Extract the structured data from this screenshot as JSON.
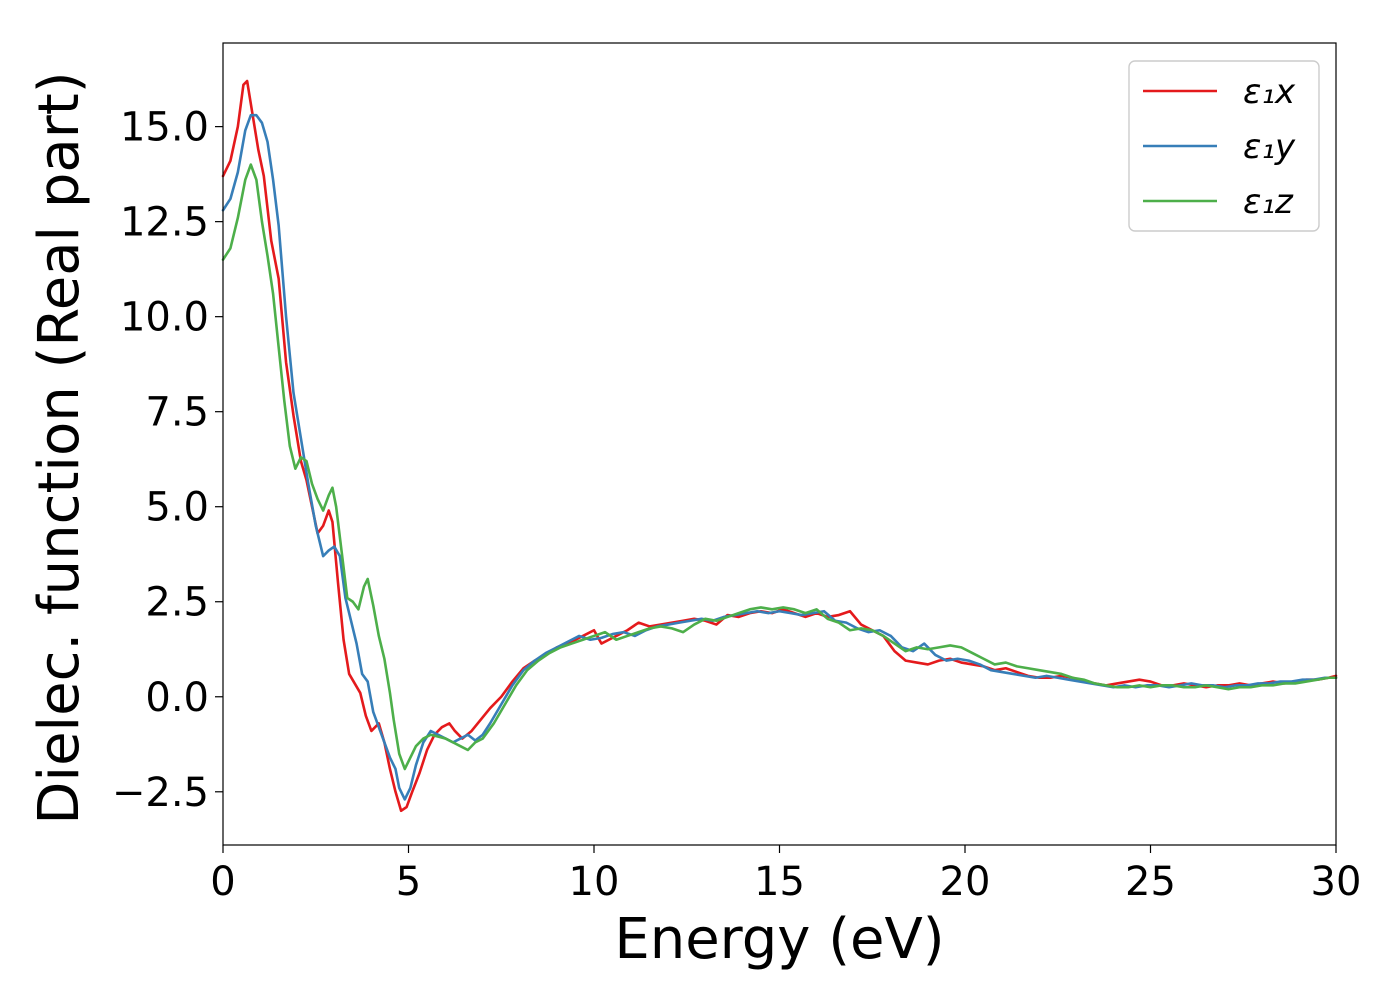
{
  "chart_data": {
    "type": "line",
    "title": "",
    "xlabel": "Energy (eV)",
    "ylabel": "Dielec. function (Real part)",
    "xlim": [
      0,
      30
    ],
    "ylim": [
      -3.9,
      17.2
    ],
    "xticks": [
      0,
      5,
      10,
      15,
      20,
      25,
      30
    ],
    "xtick_labels": [
      "0",
      "5",
      "10",
      "15",
      "20",
      "25",
      "30"
    ],
    "yticks": [
      -2.5,
      0.0,
      2.5,
      5.0,
      7.5,
      10.0,
      12.5,
      15.0
    ],
    "ytick_labels": [
      "−2.5",
      "0.0",
      "2.5",
      "5.0",
      "7.5",
      "10.0",
      "12.5",
      "15.0"
    ],
    "grid": false,
    "legend_position": "top-right",
    "series": [
      {
        "name": "ε₁x",
        "color": "#e41a1c",
        "x": [
          0,
          0.2,
          0.4,
          0.55,
          0.65,
          0.8,
          0.95,
          1.1,
          1.3,
          1.5,
          1.7,
          1.9,
          2.1,
          2.25,
          2.4,
          2.55,
          2.7,
          2.85,
          2.95,
          3.1,
          3.25,
          3.4,
          3.55,
          3.7,
          3.85,
          4.0,
          4.2,
          4.35,
          4.5,
          4.65,
          4.8,
          4.95,
          5.1,
          5.3,
          5.5,
          5.7,
          5.9,
          6.1,
          6.25,
          6.45,
          6.7,
          6.95,
          7.2,
          7.5,
          7.8,
          8.1,
          8.4,
          8.7,
          9.0,
          9.3,
          9.6,
          9.8,
          10.0,
          10.2,
          10.4,
          10.6,
          10.9,
          11.2,
          11.5,
          11.8,
          12.1,
          12.4,
          12.7,
          13.0,
          13.3,
          13.6,
          13.9,
          14.2,
          14.5,
          14.8,
          15.1,
          15.4,
          15.7,
          16.0,
          16.3,
          16.6,
          16.9,
          17.2,
          17.5,
          17.8,
          18.1,
          18.4,
          18.7,
          19.0,
          19.3,
          19.6,
          19.9,
          20.2,
          20.5,
          20.8,
          21.1,
          21.4,
          21.7,
          22.0,
          22.3,
          22.6,
          22.9,
          23.2,
          23.5,
          23.8,
          24.1,
          24.4,
          24.7,
          25.0,
          25.3,
          25.6,
          25.9,
          26.2,
          26.5,
          26.8,
          27.1,
          27.4,
          27.7,
          28.0,
          28.3,
          28.6,
          28.9,
          29.2,
          29.5,
          29.8,
          30.0
        ],
        "y": [
          13.7,
          14.1,
          15.0,
          16.1,
          16.2,
          15.3,
          14.4,
          13.7,
          12.0,
          11.0,
          8.8,
          7.4,
          6.2,
          5.7,
          5.0,
          4.3,
          4.5,
          4.9,
          4.6,
          3.0,
          1.5,
          0.6,
          0.35,
          0.1,
          -0.5,
          -0.9,
          -0.7,
          -1.2,
          -1.9,
          -2.5,
          -3.0,
          -2.9,
          -2.5,
          -2.0,
          -1.4,
          -1.0,
          -0.8,
          -0.7,
          -0.9,
          -1.1,
          -0.9,
          -0.6,
          -0.3,
          0.0,
          0.4,
          0.75,
          0.95,
          1.1,
          1.3,
          1.4,
          1.55,
          1.65,
          1.75,
          1.4,
          1.5,
          1.6,
          1.75,
          1.95,
          1.85,
          1.9,
          1.95,
          2.0,
          2.05,
          2.0,
          1.9,
          2.15,
          2.1,
          2.2,
          2.25,
          2.2,
          2.3,
          2.2,
          2.1,
          2.2,
          2.1,
          2.15,
          2.25,
          1.9,
          1.75,
          1.6,
          1.2,
          0.95,
          0.9,
          0.85,
          0.95,
          1.0,
          0.9,
          0.85,
          0.8,
          0.7,
          0.75,
          0.65,
          0.55,
          0.5,
          0.5,
          0.55,
          0.5,
          0.4,
          0.35,
          0.3,
          0.35,
          0.4,
          0.45,
          0.4,
          0.3,
          0.3,
          0.35,
          0.3,
          0.25,
          0.3,
          0.3,
          0.35,
          0.3,
          0.35,
          0.4,
          0.35,
          0.4,
          0.45,
          0.45,
          0.5,
          0.55
        ]
      },
      {
        "name": "ε₁y",
        "color": "#377eb8",
        "x": [
          0,
          0.2,
          0.4,
          0.6,
          0.75,
          0.9,
          1.05,
          1.2,
          1.35,
          1.5,
          1.7,
          1.9,
          2.1,
          2.3,
          2.5,
          2.7,
          2.85,
          3.0,
          3.15,
          3.3,
          3.45,
          3.6,
          3.75,
          3.9,
          4.05,
          4.2,
          4.35,
          4.5,
          4.65,
          4.75,
          4.9,
          5.05,
          5.2,
          5.4,
          5.6,
          5.8,
          6.0,
          6.2,
          6.4,
          6.6,
          6.8,
          7.0,
          7.2,
          7.5,
          7.8,
          8.1,
          8.4,
          8.7,
          9.0,
          9.3,
          9.6,
          9.9,
          10.2,
          10.5,
          10.8,
          11.1,
          11.4,
          11.7,
          12.0,
          12.3,
          12.6,
          12.9,
          13.2,
          13.5,
          13.8,
          14.1,
          14.4,
          14.7,
          15.0,
          15.3,
          15.6,
          15.9,
          16.2,
          16.5,
          16.8,
          17.1,
          17.4,
          17.7,
          18.0,
          18.3,
          18.6,
          18.9,
          19.2,
          19.5,
          19.8,
          20.1,
          20.4,
          20.7,
          21.0,
          21.3,
          21.6,
          21.9,
          22.2,
          22.5,
          22.8,
          23.1,
          23.4,
          23.7,
          24.0,
          24.3,
          24.6,
          24.9,
          25.2,
          25.5,
          25.8,
          26.1,
          26.4,
          26.7,
          27.0,
          27.3,
          27.6,
          27.9,
          28.2,
          28.5,
          28.8,
          29.1,
          29.4,
          29.7,
          30.0
        ],
        "y": [
          12.8,
          13.1,
          13.8,
          14.9,
          15.3,
          15.3,
          15.1,
          14.6,
          13.6,
          12.4,
          10.0,
          8.0,
          6.8,
          5.6,
          4.5,
          3.7,
          3.85,
          3.95,
          3.7,
          2.6,
          2.0,
          1.4,
          0.6,
          0.4,
          -0.4,
          -0.8,
          -1.2,
          -1.6,
          -1.9,
          -2.4,
          -2.7,
          -2.4,
          -1.8,
          -1.2,
          -0.9,
          -1.0,
          -1.1,
          -1.2,
          -1.1,
          -1.0,
          -1.15,
          -1.0,
          -0.7,
          -0.2,
          0.3,
          0.7,
          0.95,
          1.15,
          1.3,
          1.45,
          1.6,
          1.5,
          1.55,
          1.65,
          1.7,
          1.6,
          1.75,
          1.85,
          1.9,
          1.95,
          2.0,
          2.05,
          2.0,
          2.1,
          2.15,
          2.2,
          2.25,
          2.2,
          2.25,
          2.2,
          2.15,
          2.2,
          2.25,
          2.0,
          1.95,
          1.8,
          1.7,
          1.75,
          1.6,
          1.3,
          1.2,
          1.4,
          1.1,
          0.95,
          1.0,
          0.95,
          0.85,
          0.7,
          0.65,
          0.6,
          0.55,
          0.5,
          0.55,
          0.5,
          0.45,
          0.4,
          0.35,
          0.3,
          0.25,
          0.3,
          0.25,
          0.3,
          0.3,
          0.25,
          0.3,
          0.35,
          0.3,
          0.3,
          0.25,
          0.3,
          0.3,
          0.35,
          0.35,
          0.4,
          0.4,
          0.45,
          0.45,
          0.5,
          0.5
        ]
      },
      {
        "name": "ε₁z",
        "color": "#4daf4a",
        "x": [
          0,
          0.2,
          0.4,
          0.6,
          0.75,
          0.9,
          1.05,
          1.2,
          1.35,
          1.5,
          1.65,
          1.8,
          1.95,
          2.1,
          2.25,
          2.4,
          2.55,
          2.7,
          2.85,
          2.95,
          3.05,
          3.2,
          3.35,
          3.5,
          3.65,
          3.8,
          3.9,
          4.05,
          4.2,
          4.35,
          4.5,
          4.6,
          4.75,
          4.9,
          5.05,
          5.2,
          5.4,
          5.6,
          5.8,
          6.0,
          6.2,
          6.4,
          6.6,
          6.8,
          7.0,
          7.3,
          7.6,
          7.9,
          8.2,
          8.5,
          8.8,
          9.1,
          9.4,
          9.7,
          10.0,
          10.3,
          10.6,
          10.9,
          11.2,
          11.5,
          11.8,
          12.1,
          12.4,
          12.7,
          13.0,
          13.3,
          13.6,
          13.9,
          14.2,
          14.5,
          14.8,
          15.1,
          15.4,
          15.7,
          16.0,
          16.3,
          16.6,
          16.9,
          17.2,
          17.5,
          17.8,
          18.1,
          18.4,
          18.7,
          19.0,
          19.3,
          19.6,
          19.9,
          20.2,
          20.5,
          20.8,
          21.1,
          21.4,
          21.7,
          22.0,
          22.3,
          22.6,
          22.9,
          23.2,
          23.5,
          23.8,
          24.1,
          24.4,
          24.7,
          25.0,
          25.3,
          25.6,
          25.9,
          26.2,
          26.5,
          26.8,
          27.1,
          27.4,
          27.7,
          28.0,
          28.3,
          28.6,
          28.9,
          29.2,
          29.5,
          29.8,
          30.0
        ],
        "y": [
          11.5,
          11.8,
          12.6,
          13.6,
          14.0,
          13.6,
          12.5,
          11.6,
          10.6,
          9.2,
          7.8,
          6.6,
          6.0,
          6.3,
          6.2,
          5.6,
          5.2,
          4.9,
          5.3,
          5.5,
          5.0,
          3.8,
          2.6,
          2.5,
          2.3,
          2.9,
          3.1,
          2.4,
          1.6,
          1.0,
          0.1,
          -0.6,
          -1.5,
          -1.9,
          -1.6,
          -1.3,
          -1.1,
          -1.0,
          -1.05,
          -1.1,
          -1.2,
          -1.3,
          -1.4,
          -1.2,
          -1.1,
          -0.7,
          -0.2,
          0.3,
          0.7,
          0.95,
          1.15,
          1.3,
          1.4,
          1.5,
          1.6,
          1.7,
          1.5,
          1.6,
          1.7,
          1.8,
          1.85,
          1.8,
          1.7,
          1.9,
          2.05,
          2.0,
          2.1,
          2.2,
          2.3,
          2.35,
          2.3,
          2.35,
          2.3,
          2.2,
          2.3,
          2.05,
          1.95,
          1.75,
          1.8,
          1.75,
          1.6,
          1.4,
          1.2,
          1.3,
          1.25,
          1.3,
          1.35,
          1.3,
          1.15,
          1.0,
          0.85,
          0.9,
          0.8,
          0.75,
          0.7,
          0.65,
          0.6,
          0.5,
          0.45,
          0.35,
          0.3,
          0.25,
          0.25,
          0.3,
          0.25,
          0.3,
          0.3,
          0.25,
          0.25,
          0.3,
          0.25,
          0.2,
          0.25,
          0.25,
          0.3,
          0.3,
          0.35,
          0.35,
          0.4,
          0.45,
          0.5,
          0.5
        ]
      }
    ]
  }
}
